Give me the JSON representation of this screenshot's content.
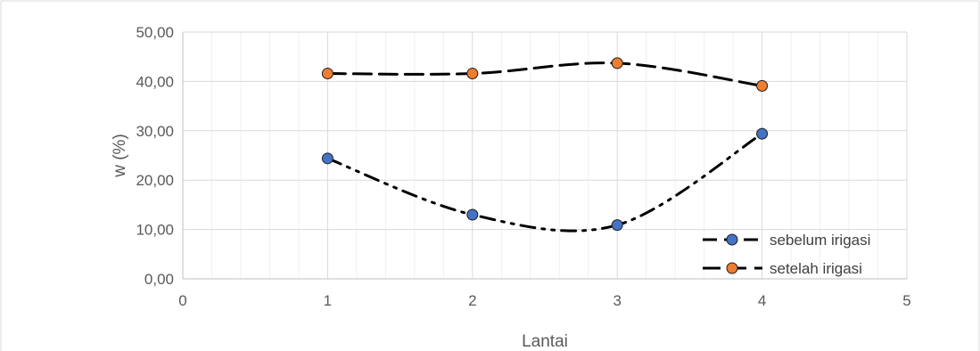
{
  "chart_data": {
    "type": "scatter",
    "xlabel": "Lantai",
    "ylabel": "w (%)",
    "xlim": [
      0,
      5
    ],
    "ylim": [
      0,
      50
    ],
    "x_ticks": [
      0,
      1,
      2,
      3,
      4,
      5
    ],
    "y_ticks": [
      "0,00",
      "10,00",
      "20,00",
      "30,00",
      "40,00",
      "50,00"
    ],
    "grid": true,
    "minor_vertical_grid": true,
    "legend_position": "bottom-right",
    "smooth_lines": true,
    "series": [
      {
        "name": "sebelum irigasi",
        "x": [
          1,
          2,
          3,
          4
        ],
        "y": [
          24.4,
          13.0,
          10.9,
          29.4
        ],
        "marker_color": "#4472C4",
        "line_style": "dash-dot-dot"
      },
      {
        "name": "setelah irigasi",
        "x": [
          1,
          2,
          3,
          4
        ],
        "y": [
          41.6,
          41.6,
          43.7,
          39.1
        ],
        "marker_color": "#ED7D31",
        "line_style": "long-dash"
      }
    ]
  }
}
